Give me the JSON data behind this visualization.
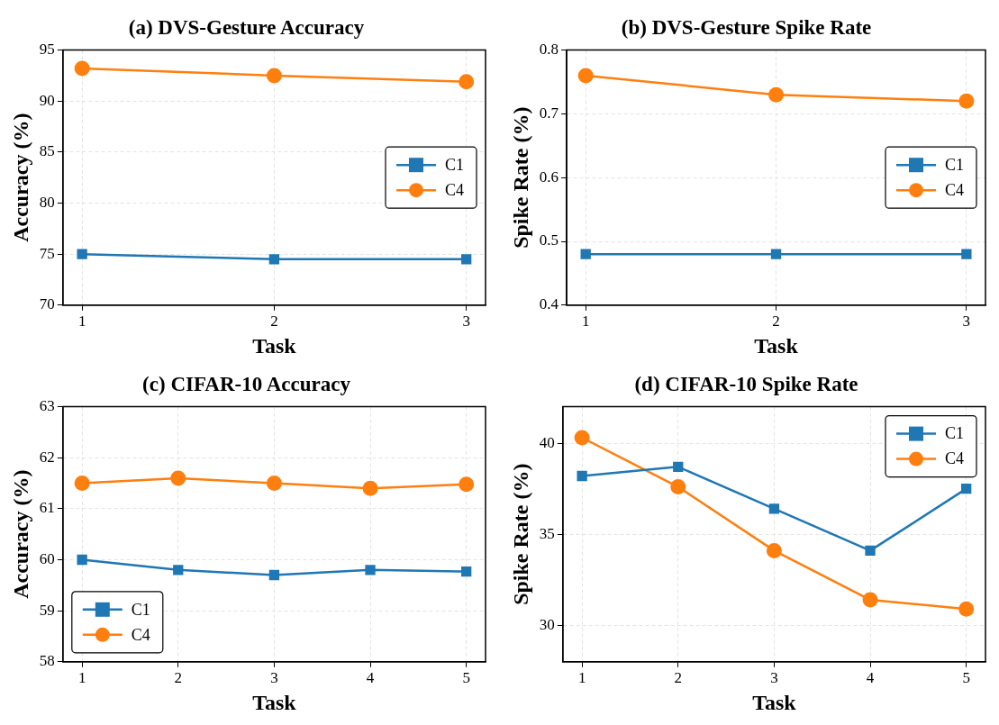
{
  "chart_data": [
    {
      "type": "line",
      "title": "(a) DVS-Gesture Accuracy",
      "xlabel": "Task",
      "ylabel": "Accuracy (%)",
      "x": [
        1,
        2,
        3
      ],
      "xlim": [
        0.9,
        3.1
      ],
      "xticks": [
        1,
        2,
        3
      ],
      "ylim": [
        70,
        95
      ],
      "yticks": [
        70,
        75,
        80,
        85,
        90,
        95
      ],
      "grid": true,
      "legend": "center right",
      "series": [
        {
          "name": "C1",
          "color": "#1f77b4",
          "marker": "square",
          "values": [
            75.0,
            74.5,
            74.5
          ]
        },
        {
          "name": "C4",
          "color": "#ff7f0e",
          "marker": "circle",
          "values": [
            93.2,
            92.5,
            91.9
          ]
        }
      ]
    },
    {
      "type": "line",
      "title": "(b) DVS-Gesture Spike Rate",
      "xlabel": "Task",
      "ylabel": "Spike Rate (%)",
      "x": [
        1,
        2,
        3
      ],
      "xlim": [
        0.9,
        3.1
      ],
      "xticks": [
        1,
        2,
        3
      ],
      "ylim": [
        0.4,
        0.8
      ],
      "yticks": [
        0.4,
        0.5,
        0.6,
        0.7,
        0.8
      ],
      "grid": true,
      "legend": "center right",
      "series": [
        {
          "name": "C1",
          "color": "#1f77b4",
          "marker": "square",
          "values": [
            0.48,
            0.48,
            0.48
          ]
        },
        {
          "name": "C4",
          "color": "#ff7f0e",
          "marker": "circle",
          "values": [
            0.76,
            0.73,
            0.72
          ]
        }
      ]
    },
    {
      "type": "line",
      "title": "(c) CIFAR-10 Accuracy",
      "xlabel": "Task",
      "ylabel": "Accuracy (%)",
      "x": [
        1,
        2,
        3,
        4,
        5
      ],
      "xlim": [
        0.8,
        5.2
      ],
      "xticks": [
        1,
        2,
        3,
        4,
        5
      ],
      "ylim": [
        58,
        63
      ],
      "yticks": [
        58,
        59,
        60,
        61,
        62,
        63
      ],
      "grid": true,
      "legend": "bottom left",
      "series": [
        {
          "name": "C1",
          "color": "#1f77b4",
          "marker": "square",
          "values": [
            60.0,
            59.8,
            59.7,
            59.8,
            59.77
          ]
        },
        {
          "name": "C4",
          "color": "#ff7f0e",
          "marker": "circle",
          "values": [
            61.5,
            61.6,
            61.5,
            61.4,
            61.48
          ]
        }
      ]
    },
    {
      "type": "line",
      "title": "(d) CIFAR-10 Spike Rate",
      "xlabel": "Task",
      "ylabel": "Spike Rate (%)",
      "x": [
        1,
        2,
        3,
        4,
        5
      ],
      "xlim": [
        0.8,
        5.2
      ],
      "xticks": [
        1,
        2,
        3,
        4,
        5
      ],
      "ylim": [
        28,
        42
      ],
      "yticks": [
        30,
        35,
        40
      ],
      "grid": true,
      "legend": "top right",
      "series": [
        {
          "name": "C1",
          "color": "#1f77b4",
          "marker": "square",
          "values": [
            38.2,
            38.7,
            36.4,
            34.1,
            37.5
          ]
        },
        {
          "name": "C4",
          "color": "#ff7f0e",
          "marker": "circle",
          "values": [
            40.3,
            37.6,
            34.1,
            31.4,
            30.9
          ]
        }
      ]
    }
  ]
}
